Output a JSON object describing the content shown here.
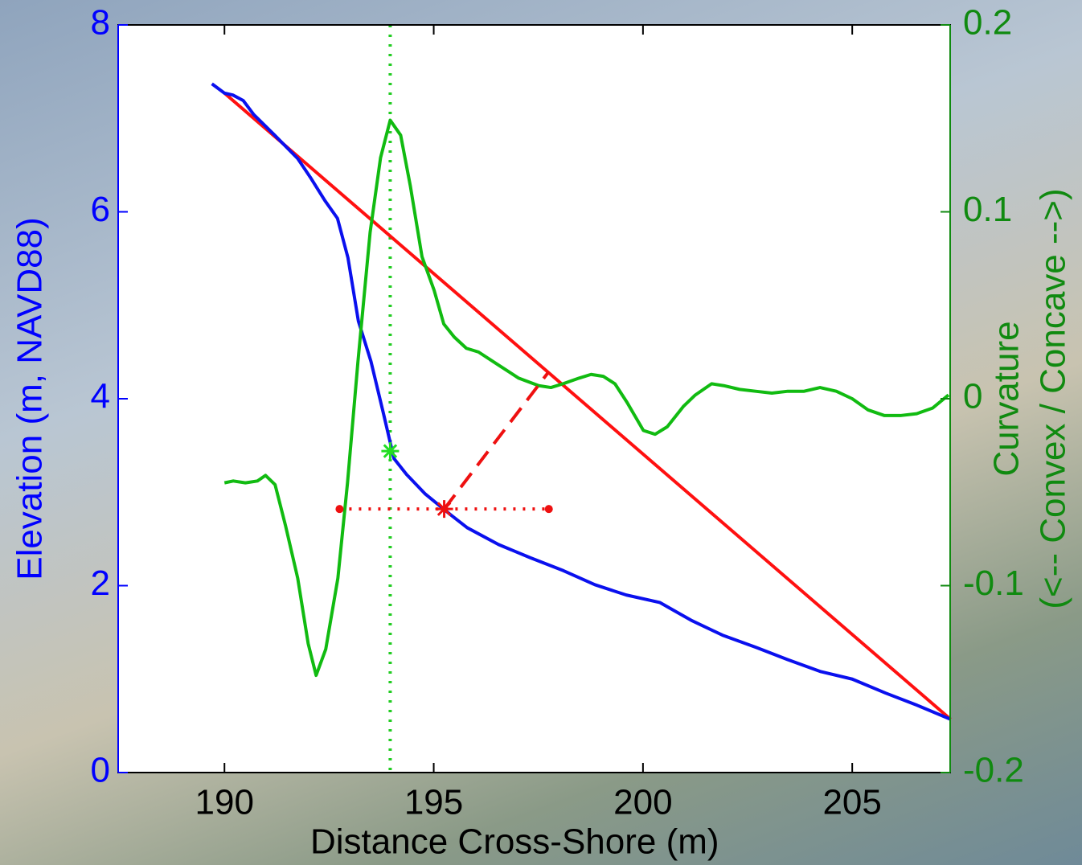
{
  "chart_data": {
    "type": "line",
    "xlabel": "Distance Cross-Shore (m)",
    "ylabel": "Elevation (m, NAVD88)",
    "y2label": [
      "Curvature",
      "(<-- Convex / Concave -->)"
    ],
    "xlim": [
      187.46,
      207.34
    ],
    "xticks": [
      190,
      195,
      200,
      205
    ],
    "ylim": [
      0,
      8
    ],
    "yticks": [
      0,
      2,
      4,
      6,
      8
    ],
    "y2lim": [
      -0.2,
      0.2
    ],
    "y2ticks": [
      -0.2,
      -0.1,
      0,
      0.1,
      0.2
    ],
    "ycolor": "#0000ff",
    "y2color": "#108a10",
    "series": [
      {
        "color": "#ff1010",
        "dash": "solid",
        "x": [
          190.0,
          207.35
        ],
        "values": [
          7.27,
          0.57
        ]
      },
      {
        "color": "#0a10ee",
        "dash": "solid",
        "x": [
          189.7,
          190.0,
          190.2,
          190.45,
          190.7,
          191.2,
          191.75,
          192.05,
          192.4,
          192.7,
          192.95,
          193.2,
          193.5,
          193.8,
          194.05,
          194.35,
          194.8,
          195.4,
          195.8,
          196.55,
          197.3,
          198.1,
          198.85,
          199.6,
          200.4,
          201.15,
          201.9,
          202.7,
          203.45,
          204.25,
          205.0,
          205.8,
          206.55,
          207.35
        ],
        "values": [
          7.37,
          7.27,
          7.25,
          7.19,
          7.04,
          6.82,
          6.57,
          6.37,
          6.12,
          5.93,
          5.51,
          4.83,
          4.4,
          3.84,
          3.36,
          3.19,
          2.98,
          2.76,
          2.62,
          2.44,
          2.3,
          2.16,
          2.01,
          1.9,
          1.82,
          1.63,
          1.47,
          1.34,
          1.21,
          1.08,
          1.0,
          0.85,
          0.72,
          0.57
        ]
      },
      {
        "color": "#11bb11",
        "dash": "solid",
        "axis": "y2",
        "x": [
          190.0,
          190.21,
          190.5,
          190.79,
          190.98,
          191.21,
          191.46,
          191.75,
          192.0,
          192.19,
          192.42,
          192.71,
          192.94,
          193.19,
          193.48,
          193.73,
          193.96,
          194.21,
          194.44,
          194.72,
          195.01,
          195.24,
          195.49,
          195.78,
          196.07,
          196.55,
          197.03,
          197.51,
          197.8,
          198.09,
          198.47,
          198.76,
          199.05,
          199.33,
          199.62,
          200.01,
          200.29,
          200.58,
          200.97,
          201.25,
          201.64,
          201.93,
          202.31,
          202.69,
          203.08,
          203.46,
          203.85,
          204.23,
          204.62,
          205.0,
          205.38,
          205.77,
          206.15,
          206.54,
          206.92,
          207.3
        ],
        "values": [
          -0.045,
          -0.044,
          -0.045,
          -0.044,
          -0.041,
          -0.046,
          -0.068,
          -0.096,
          -0.131,
          -0.148,
          -0.134,
          -0.096,
          -0.045,
          0.02,
          0.089,
          0.129,
          0.149,
          0.141,
          0.114,
          0.076,
          0.058,
          0.04,
          0.033,
          0.027,
          0.025,
          0.018,
          0.011,
          0.007,
          0.006,
          0.008,
          0.011,
          0.013,
          0.012,
          0.008,
          -0.002,
          -0.017,
          -0.019,
          -0.015,
          -0.004,
          0.002,
          0.008,
          0.007,
          0.005,
          0.004,
          0.003,
          0.004,
          0.004,
          0.006,
          0.004,
          0.0,
          -0.006,
          -0.009,
          -0.009,
          -0.008,
          -0.005,
          0.002
        ]
      },
      {
        "color": "#ee1010",
        "dash": "dotted",
        "marker": "dot",
        "x": [
          192.75,
          197.75
        ],
        "values": [
          2.82,
          2.82
        ]
      },
      {
        "color": "#ee1010",
        "dash": "dashed",
        "x": [
          195.25,
          197.75
        ],
        "values": [
          2.82,
          4.29
        ]
      },
      {
        "color": "#ee1010",
        "dash": "none",
        "marker": "star",
        "x": [
          195.25
        ],
        "values": [
          2.82
        ]
      },
      {
        "color": "#22dd22",
        "dash": "none",
        "marker": "star",
        "axis": "y2",
        "x": [
          193.96
        ],
        "values": [
          -0.028
        ]
      }
    ],
    "vlines": [
      {
        "x": 193.96,
        "color": "#22cc22",
        "dash": "dotted"
      }
    ]
  }
}
